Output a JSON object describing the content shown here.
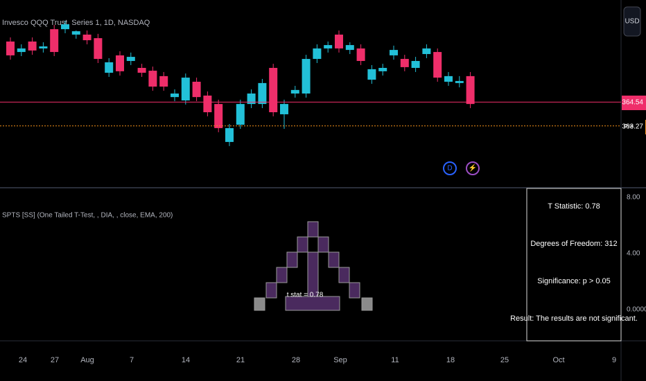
{
  "header": {
    "symbol_title": "Invesco QQQ Trust, Series 1, 1D, NASDAQ",
    "currency": "USD"
  },
  "chart_data": {
    "type": "candlestick",
    "ylim": [
      360,
      370
    ],
    "up_color": "#22c0d8",
    "down_color": "#ef2e6a",
    "candles": [
      [
        367.78,
        368.0,
        366.81,
        367.04
      ],
      [
        367.22,
        367.63,
        367.0,
        367.41
      ],
      [
        367.78,
        368.0,
        367.07,
        367.3
      ],
      [
        367.41,
        367.74,
        367.19,
        367.52
      ],
      [
        368.44,
        368.67,
        367.0,
        367.22
      ],
      [
        368.44,
        368.89,
        368.22,
        368.7
      ],
      [
        368.15,
        368.37,
        367.93,
        368.33
      ],
      [
        368.15,
        368.37,
        367.63,
        367.85
      ],
      [
        367.96,
        368.19,
        366.63,
        366.85
      ],
      [
        366.11,
        366.89,
        365.89,
        366.67
      ],
      [
        367.04,
        367.26,
        365.96,
        366.19
      ],
      [
        366.74,
        367.19,
        366.52,
        366.96
      ],
      [
        366.37,
        366.59,
        365.89,
        366.11
      ],
      [
        366.22,
        366.44,
        365.15,
        365.37
      ],
      [
        365.93,
        366.15,
        365.15,
        365.37
      ],
      [
        364.81,
        365.22,
        364.59,
        365.0
      ],
      [
        364.63,
        366.07,
        364.41,
        365.85
      ],
      [
        365.63,
        365.85,
        364.59,
        364.81
      ],
      [
        364.89,
        365.11,
        363.78,
        364.0
      ],
      [
        364.44,
        364.67,
        362.93,
        363.15
      ],
      [
        362.41,
        363.37,
        362.19,
        363.15
      ],
      [
        363.33,
        364.67,
        363.11,
        364.44
      ],
      [
        364.44,
        365.22,
        364.22,
        365.0
      ],
      [
        364.44,
        365.78,
        364.22,
        365.56
      ],
      [
        366.37,
        366.59,
        363.78,
        364.0
      ],
      [
        363.89,
        364.67,
        363.11,
        364.44
      ],
      [
        365.0,
        365.41,
        364.78,
        365.19
      ],
      [
        365.0,
        367.07,
        364.78,
        366.85
      ],
      [
        366.85,
        367.63,
        366.63,
        367.41
      ],
      [
        367.41,
        367.78,
        367.19,
        367.59
      ],
      [
        368.15,
        368.37,
        367.19,
        367.41
      ],
      [
        367.33,
        367.74,
        367.11,
        367.59
      ],
      [
        367.41,
        367.63,
        366.52,
        366.74
      ],
      [
        365.74,
        366.52,
        365.52,
        366.3
      ],
      [
        366.19,
        366.59,
        365.96,
        366.37
      ],
      [
        367.04,
        367.56,
        366.81,
        367.33
      ],
      [
        366.85,
        367.07,
        366.19,
        366.41
      ],
      [
        366.37,
        366.96,
        366.15,
        366.74
      ],
      [
        367.11,
        367.63,
        366.89,
        367.41
      ],
      [
        367.22,
        367.41,
        365.63,
        365.85
      ],
      [
        365.63,
        366.15,
        365.41,
        365.93
      ],
      [
        365.56,
        365.93,
        365.33,
        365.67
      ],
      [
        365.93,
        366.15,
        364.22,
        364.44
      ]
    ],
    "price_line": {
      "value": 364.54,
      "label": "364.54",
      "color": "#ef2e6a"
    },
    "pre_line": {
      "value": 363.27,
      "tag": "Pre",
      "label": "363.27",
      "color": "#f7931a"
    },
    "categories": [
      "24",
      "27",
      "Aug",
      "7",
      "14",
      "21",
      "28",
      "Sep",
      "11",
      "18",
      "25",
      "Oct",
      "9"
    ]
  },
  "indicator": {
    "title": "SPTS [SS] (One Tailed T-Test, , DIA, , close, EMA, 200)",
    "t_label": "t stat = 0.78",
    "yticks": [
      "8.00",
      "4.00",
      "0.0000"
    ],
    "stats": [
      "T Statistic: 0.78",
      "Degrees of Freedom:  312",
      "Significance:  p > 0.05",
      "Result:  The results are not significant."
    ]
  }
}
